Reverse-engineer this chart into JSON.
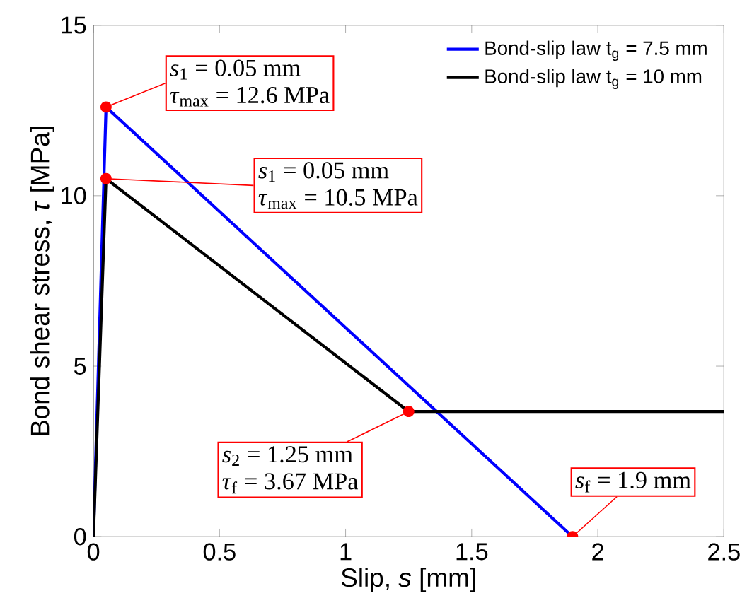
{
  "chart_data": {
    "type": "line",
    "xlabel": "Slip, *s*  [mm]",
    "ylabel": "Bond shear stress, *τ* [MPa]",
    "series": [
      {
        "name": "Bond-slip law t$_{g}$ = 7.5 mm",
        "color": "#0000ff",
        "x": [
          0,
          0.05,
          1.9
        ],
        "values": [
          0,
          12.6,
          0
        ]
      },
      {
        "name": "Bond-slip law t$_{g}$ = 10 mm",
        "color": "#000000",
        "x": [
          0,
          0.05,
          1.25,
          2.5
        ],
        "values": [
          0,
          10.5,
          3.67,
          3.67
        ]
      }
    ],
    "xlim": [
      0,
      2.5
    ],
    "ylim": [
      0,
      15
    ],
    "xticks": [
      0,
      0.5,
      1,
      1.5,
      2,
      2.5
    ],
    "yticks": [
      0,
      5,
      10,
      15
    ],
    "grid": false,
    "legend": "top right",
    "line_style": "solid",
    "annotations": [
      {
        "text": "*s*$_{1}$ = 0.05 mm",
        "x": 0.05,
        "y": 12.6
      },
      {
        "text": "*τ*$_{max}$ = 12.6 MPa",
        "x": 0.05,
        "y": 12.6
      },
      {
        "text": "*s*$_{1}$ = 0.05 mm",
        "x": 0.05,
        "y": 10.5
      },
      {
        "text": "*τ*$_{max}$ = 10.5 MPa",
        "x": 0.05,
        "y": 10.5
      },
      {
        "text": "*s*$_{2}$ = 1.25 mm",
        "x": 1.25,
        "y": 3.67
      },
      {
        "text": "*τ*$_{f}$ = 3.67 MPa",
        "x": 1.25,
        "y": 3.67
      },
      {
        "text": "*s*$_{f}$ = 1.9 mm",
        "x": 1.9,
        "y": 0
      }
    ]
  }
}
